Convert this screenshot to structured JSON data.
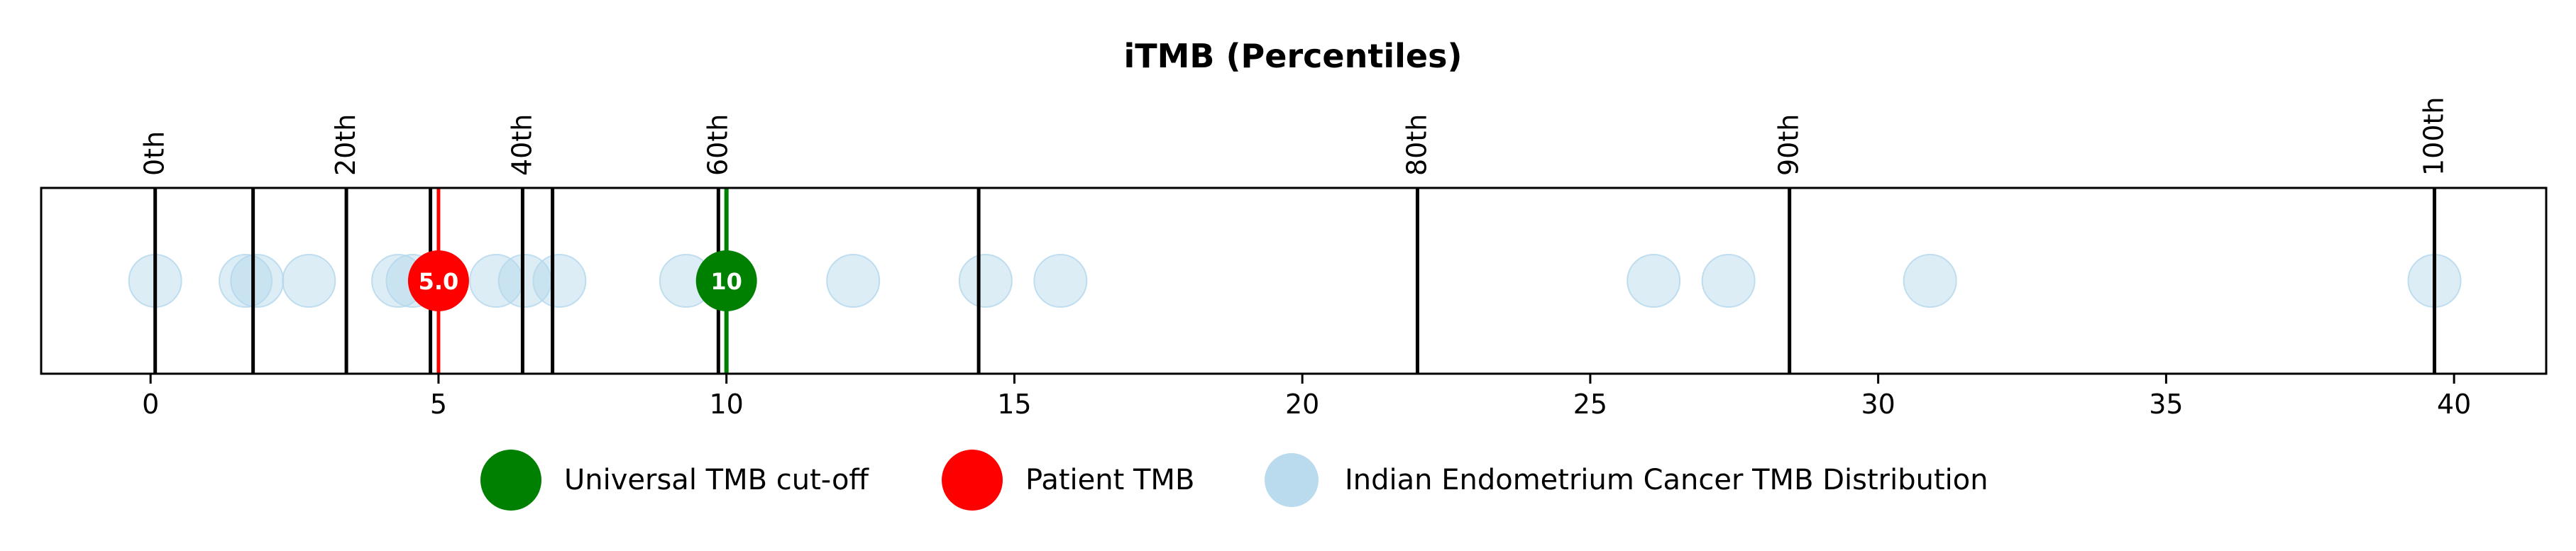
{
  "chart_data": {
    "type": "scatter",
    "title": "iTMB (Percentiles)",
    "xlim": [
      -1.9,
      41.6
    ],
    "x_ticks": [
      0,
      5,
      10,
      15,
      20,
      25,
      30,
      35,
      40
    ],
    "percentile_lines": [
      {
        "x": 0.08,
        "label": "0th"
      },
      {
        "x": 1.78,
        "label": ""
      },
      {
        "x": 3.4,
        "label": "20th"
      },
      {
        "x": 4.86,
        "label": ""
      },
      {
        "x": 6.46,
        "label": "40th"
      },
      {
        "x": 6.98,
        "label": ""
      },
      {
        "x": 9.86,
        "label": "60th"
      },
      {
        "x": 14.38,
        "label": ""
      },
      {
        "x": 22.0,
        "label": "80th"
      },
      {
        "x": 28.46,
        "label": "90th"
      },
      {
        "x": 39.66,
        "label": "100th"
      }
    ],
    "distribution": {
      "name": "Indian Endometrium Cancer TMB Distribution",
      "color": "#b3d7ec",
      "x": [
        0.08,
        1.65,
        1.85,
        2.75,
        4.3,
        4.55,
        6.0,
        6.5,
        7.1,
        9.3,
        12.2,
        14.5,
        15.8,
        26.1,
        27.4,
        30.9,
        39.66
      ]
    },
    "patient": {
      "name": "Patient TMB",
      "x": 5.0,
      "label": "5.0",
      "color": "#ff0000"
    },
    "cutoff": {
      "name": "Universal TMB cut-off",
      "x": 10,
      "label": "10",
      "color": "#008000"
    },
    "legend": {
      "placement": "bottom-center",
      "entries": [
        {
          "label": "Universal TMB cut-off",
          "color": "#008000"
        },
        {
          "label": "Patient TMB",
          "color": "#ff0000"
        },
        {
          "label": "Indian Endometrium Cancer TMB Distribution",
          "color": "#b3d7ec"
        }
      ]
    }
  }
}
